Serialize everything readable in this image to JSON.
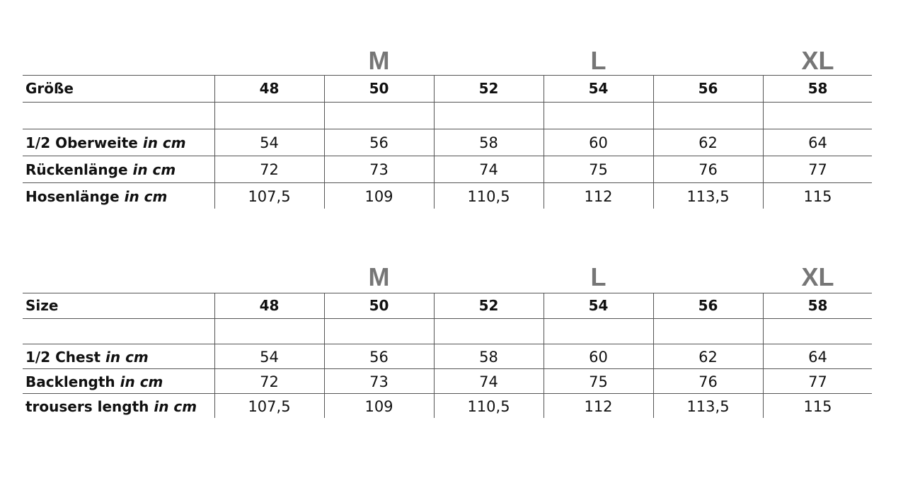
{
  "tables": [
    {
      "size_letters": {
        "col2": "M",
        "col4": "L",
        "col6": "XL"
      },
      "header": {
        "label": "Größe",
        "values": [
          "48",
          "50",
          "52",
          "54",
          "56",
          "58"
        ]
      },
      "rows": [
        {
          "label": "1/2 Oberweite",
          "unit": "in cm",
          "values": [
            "54",
            "56",
            "58",
            "60",
            "62",
            "64"
          ]
        },
        {
          "label": "Rückenlänge",
          "unit": "in cm",
          "values": [
            "72",
            "73",
            "74",
            "75",
            "76",
            "77"
          ]
        },
        {
          "label": "Hosenlänge",
          "unit": "in cm",
          "values": [
            "107,5",
            "109",
            "110,5",
            "112",
            "113,5",
            "115"
          ]
        }
      ]
    },
    {
      "size_letters": {
        "col2": "M",
        "col4": "L",
        "col6": "XL"
      },
      "header": {
        "label": "Size",
        "values": [
          "48",
          "50",
          "52",
          "54",
          "56",
          "58"
        ]
      },
      "rows": [
        {
          "label": "1/2 Chest",
          "unit": "in cm",
          "values": [
            "54",
            "56",
            "58",
            "60",
            "62",
            "64"
          ]
        },
        {
          "label": "Backlength",
          "unit": "in cm",
          "values": [
            "72",
            "73",
            "74",
            "75",
            "76",
            "77"
          ]
        },
        {
          "label": "trousers length",
          "unit": "in cm",
          "values": [
            "107,5",
            "109",
            "110,5",
            "112",
            "113,5",
            "115"
          ]
        }
      ]
    }
  ]
}
